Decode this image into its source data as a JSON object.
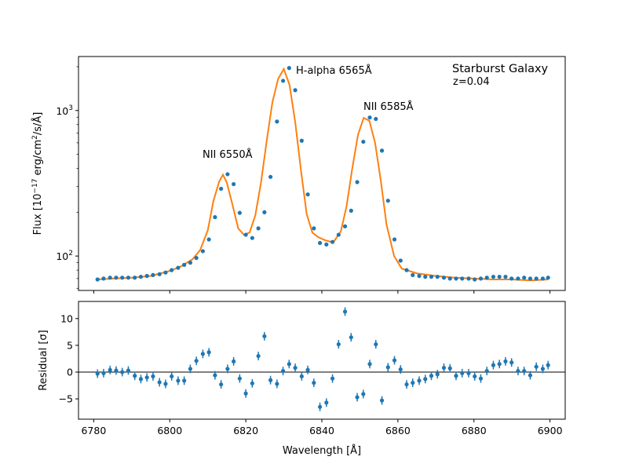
{
  "chart_data": [
    {
      "type": "scatter",
      "panel": "top",
      "title": "Starburst Galaxy",
      "subtitle": "z=0.04",
      "xlabel": "",
      "ylabel": "Flux [10^-17 erg/cm^2/s/Å]",
      "ylabel_parts": {
        "base": "Flux [10",
        "exp1": "−17",
        "mid": " erg/cm",
        "exp2": "2",
        "tail": "/s/Å]"
      },
      "yscale": "log",
      "xlim": [
        6776,
        6904
      ],
      "ylim": [
        58,
        2350
      ],
      "ytick_labels": [
        {
          "value": 100,
          "base": "10",
          "exp": "2"
        },
        {
          "value": 1000,
          "base": "10",
          "exp": "3"
        }
      ],
      "annotations": [
        {
          "text": "NII 6550Å",
          "x": 6808,
          "y": 450
        },
        {
          "text": "H-alpha 6565Å",
          "x": 6833,
          "y": 1700
        },
        {
          "text": "NII 6585Å",
          "x": 6851,
          "y": 960
        }
      ],
      "colors": {
        "data": "#1f77b4",
        "model": "#ff7f0e"
      },
      "series": [
        {
          "name": "data",
          "x": [
            6781.0,
            6782.6,
            6784.3,
            6785.9,
            6787.5,
            6789.1,
            6790.8,
            6792.4,
            6794.0,
            6795.6,
            6797.3,
            6798.9,
            6800.5,
            6802.2,
            6803.8,
            6805.4,
            6807.0,
            6808.7,
            6810.3,
            6811.9,
            6813.5,
            6815.2,
            6816.8,
            6818.4,
            6820.0,
            6821.7,
            6823.3,
            6824.9,
            6826.5,
            6828.2,
            6829.8,
            6831.4,
            6833.0,
            6834.7,
            6836.3,
            6837.9,
            6839.5,
            6841.2,
            6842.8,
            6844.4,
            6846.1,
            6847.7,
            6849.3,
            6850.9,
            6852.6,
            6854.2,
            6855.8,
            6857.4,
            6859.1,
            6860.7,
            6862.3,
            6863.9,
            6865.6,
            6867.2,
            6868.8,
            6870.4,
            6872.1,
            6873.7,
            6875.3,
            6876.9,
            6878.6,
            6880.2,
            6881.8,
            6883.4,
            6885.1,
            6886.7,
            6888.3,
            6889.9,
            6891.6,
            6893.2,
            6894.8,
            6896.4,
            6898.1,
            6899.5
          ],
          "y": [
            69,
            70,
            71,
            71,
            71,
            71,
            71,
            72,
            73,
            74,
            75,
            77,
            80,
            83,
            87,
            90,
            97,
            108,
            130,
            185,
            290,
            365,
            312,
            198,
            140,
            133,
            155,
            200,
            350,
            840,
            1600,
            1960,
            1380,
            620,
            265,
            155,
            123,
            120,
            125,
            140,
            160,
            205,
            322,
            610,
            895,
            875,
            530,
            240,
            130,
            93,
            80,
            74,
            73,
            72,
            72,
            72,
            71,
            70,
            70,
            70,
            70,
            69,
            70,
            71,
            72,
            72,
            72,
            70,
            70,
            71,
            70,
            70,
            70,
            71
          ]
        },
        {
          "name": "model",
          "x": [
            6781,
            6785,
            6790,
            6795,
            6800,
            6803,
            6806,
            6808,
            6810,
            6811.5,
            6813,
            6814,
            6815,
            6816.5,
            6818,
            6819.5,
            6821,
            6822.5,
            6824,
            6825.5,
            6827,
            6828.5,
            6830,
            6831.5,
            6833,
            6834.5,
            6836,
            6837.5,
            6839,
            6841,
            6843,
            6845,
            6846.5,
            6848,
            6849.5,
            6851,
            6852.5,
            6854,
            6855.5,
            6857,
            6859,
            6861,
            6865,
            6870,
            6875,
            6880,
            6885,
            6890,
            6895,
            6899.5
          ],
          "y": [
            69,
            70,
            71,
            73,
            79,
            85,
            95,
            110,
            150,
            240,
            325,
            362,
            320,
            225,
            155,
            140,
            145,
            190,
            320,
            620,
            1140,
            1650,
            1930,
            1500,
            830,
            390,
            195,
            145,
            135,
            128,
            124,
            148,
            220,
            400,
            680,
            890,
            850,
            600,
            330,
            165,
            100,
            82,
            76,
            73,
            71,
            70,
            69,
            69,
            68,
            69
          ]
        }
      ]
    },
    {
      "type": "scatter",
      "panel": "bottom",
      "xlabel": "Wavelength [Å]",
      "ylabel": "Residual [σ]",
      "xlim": [
        6776,
        6904
      ],
      "ylim": [
        -8.8,
        13.2
      ],
      "xticks": [
        6780,
        6800,
        6820,
        6840,
        6860,
        6880,
        6900
      ],
      "yticks": [
        -5,
        0,
        5,
        10
      ],
      "ytick_labels": [
        "−5",
        "0",
        "5",
        "10"
      ],
      "errorbar": 0.8,
      "reference_line": 0,
      "colors": {
        "data": "#1f77b4",
        "line": "#000000"
      },
      "series": [
        {
          "name": "residuals",
          "x": [
            6781.0,
            6782.6,
            6784.3,
            6785.9,
            6787.5,
            6789.1,
            6790.8,
            6792.4,
            6794.0,
            6795.6,
            6797.3,
            6798.9,
            6800.5,
            6802.2,
            6803.8,
            6805.4,
            6807.0,
            6808.7,
            6810.3,
            6811.9,
            6813.5,
            6815.2,
            6816.8,
            6818.4,
            6820.0,
            6821.7,
            6823.3,
            6824.9,
            6826.5,
            6828.2,
            6829.8,
            6831.4,
            6833.0,
            6834.7,
            6836.3,
            6837.9,
            6839.5,
            6841.2,
            6842.8,
            6844.4,
            6846.1,
            6847.7,
            6849.3,
            6850.9,
            6852.6,
            6854.2,
            6855.8,
            6857.4,
            6859.1,
            6860.7,
            6862.3,
            6863.9,
            6865.6,
            6867.2,
            6868.8,
            6870.4,
            6872.1,
            6873.7,
            6875.3,
            6876.9,
            6878.6,
            6880.2,
            6881.8,
            6883.4,
            6885.1,
            6886.7,
            6888.3,
            6889.9,
            6891.6,
            6893.2,
            6894.8,
            6896.4,
            6898.1,
            6899.5
          ],
          "y": [
            -0.3,
            -0.2,
            0.4,
            0.3,
            0.0,
            0.3,
            -0.7,
            -1.3,
            -1.0,
            -0.8,
            -1.9,
            -2.2,
            -0.8,
            -1.6,
            -1.6,
            0.6,
            2.1,
            3.4,
            3.7,
            -0.6,
            -2.3,
            0.6,
            2.0,
            -1.2,
            -4.0,
            -2.1,
            3.0,
            6.7,
            -1.5,
            -2.2,
            0.2,
            1.5,
            0.8,
            -0.8,
            0.4,
            -2.0,
            -6.5,
            -5.7,
            -1.2,
            5.2,
            11.3,
            6.5,
            -4.7,
            -4.1,
            1.5,
            5.2,
            -5.3,
            0.9,
            2.2,
            0.5,
            -2.3,
            -2.0,
            -1.6,
            -1.3,
            -0.7,
            -0.4,
            0.8,
            0.7,
            -0.7,
            -0.2,
            -0.2,
            -0.8,
            -1.2,
            0.2,
            1.3,
            1.5,
            2.0,
            1.8,
            0.2,
            0.2,
            -0.6,
            1.0,
            0.6,
            1.3
          ]
        }
      ]
    }
  ]
}
